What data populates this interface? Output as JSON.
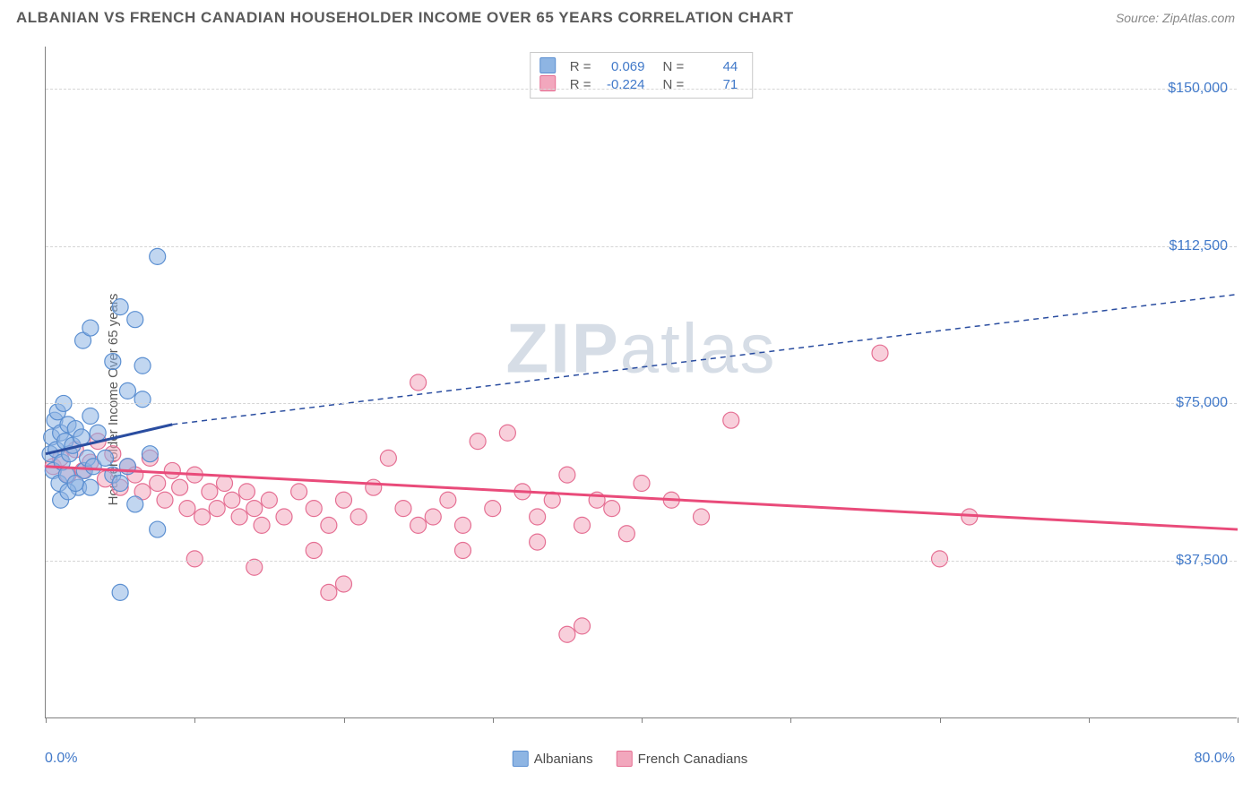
{
  "header": {
    "title": "ALBANIAN VS FRENCH CANADIAN HOUSEHOLDER INCOME OVER 65 YEARS CORRELATION CHART",
    "source": "Source: ZipAtlas.com"
  },
  "chart": {
    "type": "scatter",
    "y_axis_label": "Householder Income Over 65 years",
    "xlim": [
      0,
      80
    ],
    "ylim": [
      0,
      160000
    ],
    "x_min_label": "0.0%",
    "x_max_label": "80.0%",
    "y_ticks": [
      {
        "v": 37500,
        "label": "$37,500"
      },
      {
        "v": 75000,
        "label": "$75,000"
      },
      {
        "v": 112500,
        "label": "$112,500"
      },
      {
        "v": 150000,
        "label": "$150,000"
      }
    ],
    "x_ticks_percent": [
      0,
      10,
      20,
      30,
      40,
      50,
      60,
      70,
      80
    ],
    "grid_color": "#d5d5d5",
    "axis_color": "#808080",
    "background_color": "#ffffff",
    "tick_label_color": "#4179c9",
    "watermark_text_bold": "ZIP",
    "watermark_text_rest": "atlas",
    "watermark_color": "#d6dde6",
    "series": [
      {
        "name": "Albanians",
        "fill": "#8eb5e3",
        "fill_opacity": 0.55,
        "stroke": "#5b8fd1",
        "stroke_width": 1.2,
        "marker_radius": 9,
        "trend_color": "#2a4da0",
        "trend_width": 3,
        "trend_dash": "6,5",
        "trend": {
          "x0": 0,
          "y0": 63000,
          "x_solid_end": 8.5,
          "y_solid_end": 70000,
          "x1": 80,
          "y1": 101000
        },
        "stats": {
          "R": "0.069",
          "N": "44"
        },
        "points": [
          [
            0.3,
            63000
          ],
          [
            0.4,
            67000
          ],
          [
            0.5,
            59000
          ],
          [
            0.6,
            71000
          ],
          [
            0.7,
            64000
          ],
          [
            0.8,
            73000
          ],
          [
            0.9,
            56000
          ],
          [
            1.0,
            68000
          ],
          [
            1.1,
            61000
          ],
          [
            1.2,
            75000
          ],
          [
            1.3,
            66000
          ],
          [
            1.4,
            58000
          ],
          [
            1.5,
            70000
          ],
          [
            1.6,
            63000
          ],
          [
            1.8,
            65000
          ],
          [
            2.0,
            69000
          ],
          [
            2.2,
            55000
          ],
          [
            2.4,
            67000
          ],
          [
            2.6,
            59000
          ],
          [
            2.8,
            62000
          ],
          [
            3.0,
            72000
          ],
          [
            3.2,
            60000
          ],
          [
            3.5,
            68000
          ],
          [
            3.0,
            55000
          ],
          [
            1.0,
            52000
          ],
          [
            1.5,
            54000
          ],
          [
            2.0,
            56000
          ],
          [
            4.0,
            62000
          ],
          [
            4.5,
            58000
          ],
          [
            5.0,
            56000
          ],
          [
            5.5,
            60000
          ],
          [
            6.0,
            51000
          ],
          [
            7.0,
            63000
          ],
          [
            7.5,
            45000
          ],
          [
            5.0,
            30000
          ],
          [
            2.5,
            90000
          ],
          [
            3.0,
            93000
          ],
          [
            5.0,
            98000
          ],
          [
            6.0,
            95000
          ],
          [
            6.5,
            84000
          ],
          [
            4.5,
            85000
          ],
          [
            5.5,
            78000
          ],
          [
            6.5,
            76000
          ],
          [
            7.5,
            110000
          ]
        ]
      },
      {
        "name": "French Canadians",
        "fill": "#f2a7bd",
        "fill_opacity": 0.55,
        "stroke": "#e56f93",
        "stroke_width": 1.2,
        "marker_radius": 9,
        "trend_color": "#e94b7a",
        "trend_width": 3,
        "trend_dash": "none",
        "trend": {
          "x0": 0,
          "y0": 60000,
          "x1": 80,
          "y1": 45000
        },
        "stats": {
          "R": "-0.224",
          "N": "71"
        },
        "points": [
          [
            0.5,
            60000
          ],
          [
            1.0,
            62000
          ],
          [
            1.5,
            58000
          ],
          [
            2.0,
            64000
          ],
          [
            2.5,
            59000
          ],
          [
            3.0,
            61000
          ],
          [
            3.5,
            66000
          ],
          [
            4.0,
            57000
          ],
          [
            4.5,
            63000
          ],
          [
            5.0,
            55000
          ],
          [
            5.5,
            60000
          ],
          [
            6.0,
            58000
          ],
          [
            6.5,
            54000
          ],
          [
            7.0,
            62000
          ],
          [
            7.5,
            56000
          ],
          [
            8.0,
            52000
          ],
          [
            8.5,
            59000
          ],
          [
            9.0,
            55000
          ],
          [
            9.5,
            50000
          ],
          [
            10.0,
            58000
          ],
          [
            10.5,
            48000
          ],
          [
            11.0,
            54000
          ],
          [
            11.5,
            50000
          ],
          [
            12.0,
            56000
          ],
          [
            12.5,
            52000
          ],
          [
            13.0,
            48000
          ],
          [
            13.5,
            54000
          ],
          [
            14.0,
            50000
          ],
          [
            14.5,
            46000
          ],
          [
            15.0,
            52000
          ],
          [
            16.0,
            48000
          ],
          [
            17.0,
            54000
          ],
          [
            18.0,
            50000
          ],
          [
            19.0,
            46000
          ],
          [
            20.0,
            52000
          ],
          [
            21.0,
            48000
          ],
          [
            22.0,
            55000
          ],
          [
            23.0,
            62000
          ],
          [
            24.0,
            50000
          ],
          [
            25.0,
            80000
          ],
          [
            26.0,
            48000
          ],
          [
            27.0,
            52000
          ],
          [
            28.0,
            46000
          ],
          [
            29.0,
            66000
          ],
          [
            30.0,
            50000
          ],
          [
            31.0,
            68000
          ],
          [
            32.0,
            54000
          ],
          [
            33.0,
            48000
          ],
          [
            34.0,
            52000
          ],
          [
            35.0,
            58000
          ],
          [
            36.0,
            46000
          ],
          [
            37.0,
            52000
          ],
          [
            38.0,
            50000
          ],
          [
            39.0,
            44000
          ],
          [
            40.0,
            56000
          ],
          [
            42.0,
            52000
          ],
          [
            44.0,
            48000
          ],
          [
            46.0,
            71000
          ],
          [
            33.0,
            42000
          ],
          [
            28.0,
            40000
          ],
          [
            35.0,
            20000
          ],
          [
            10.0,
            38000
          ],
          [
            14.0,
            36000
          ],
          [
            20.0,
            32000
          ],
          [
            36.0,
            22000
          ],
          [
            19.0,
            30000
          ],
          [
            56.0,
            87000
          ],
          [
            62.0,
            48000
          ],
          [
            60.0,
            38000
          ],
          [
            18.0,
            40000
          ],
          [
            25.0,
            46000
          ]
        ]
      }
    ],
    "bottom_legend": [
      {
        "swatch_fill": "#8eb5e3",
        "swatch_stroke": "#5b8fd1",
        "label": "Albanians"
      },
      {
        "swatch_fill": "#f2a7bd",
        "swatch_stroke": "#e56f93",
        "label": "French Canadians"
      }
    ]
  }
}
